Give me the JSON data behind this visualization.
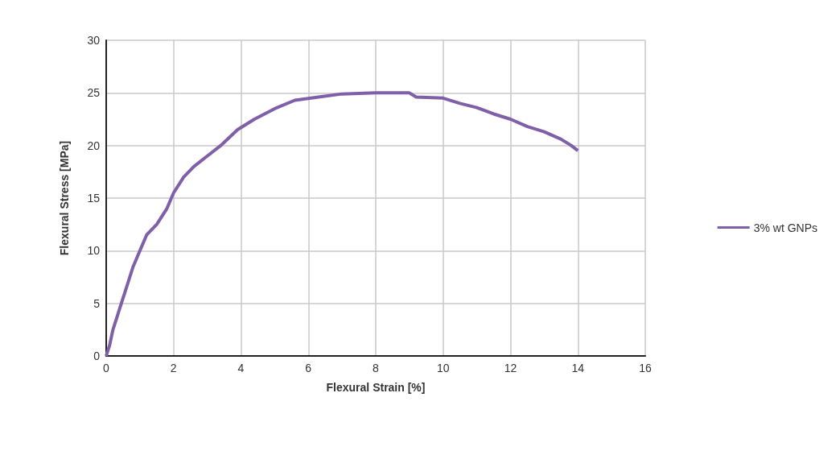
{
  "chart_data": {
    "type": "line",
    "xlabel": "Flexural Strain [%]",
    "ylabel": "Flexural Stress [MPa]",
    "xlim": [
      0,
      16
    ],
    "xticks": [
      0,
      2,
      4,
      6,
      8,
      10,
      12,
      14,
      16
    ],
    "ylim": [
      0,
      30
    ],
    "yticks": [
      0,
      5,
      10,
      15,
      20,
      25,
      30
    ],
    "grid": true,
    "legend": "right",
    "marker": "none",
    "line_style": "solid",
    "series": [
      {
        "name": "3% wt GNPs",
        "color": "#7f5fa8",
        "x": [
          0,
          0.1,
          0.2,
          0.3,
          0.4,
          0.5,
          0.6,
          0.7,
          0.8,
          1,
          1.2,
          1.5,
          1.8,
          2,
          2.3,
          2.6,
          3,
          3.4,
          3.9,
          4.4,
          5,
          5.6,
          6.3,
          7,
          8,
          9,
          9.2,
          10,
          10.5,
          11,
          11.5,
          12,
          12.5,
          13,
          13.5,
          13.8,
          14
        ],
        "values": [
          0,
          1,
          2.5,
          3.5,
          4.5,
          5.5,
          6.5,
          7.5,
          8.5,
          10,
          11.5,
          12.5,
          14,
          15.5,
          17,
          18,
          19,
          20,
          21.5,
          22.5,
          23.5,
          24.3,
          24.6,
          24.9,
          25,
          25,
          24.6,
          24.5,
          24,
          23.6,
          23,
          22.5,
          21.8,
          21.3,
          20.6,
          20,
          19.5
        ]
      }
    ]
  }
}
